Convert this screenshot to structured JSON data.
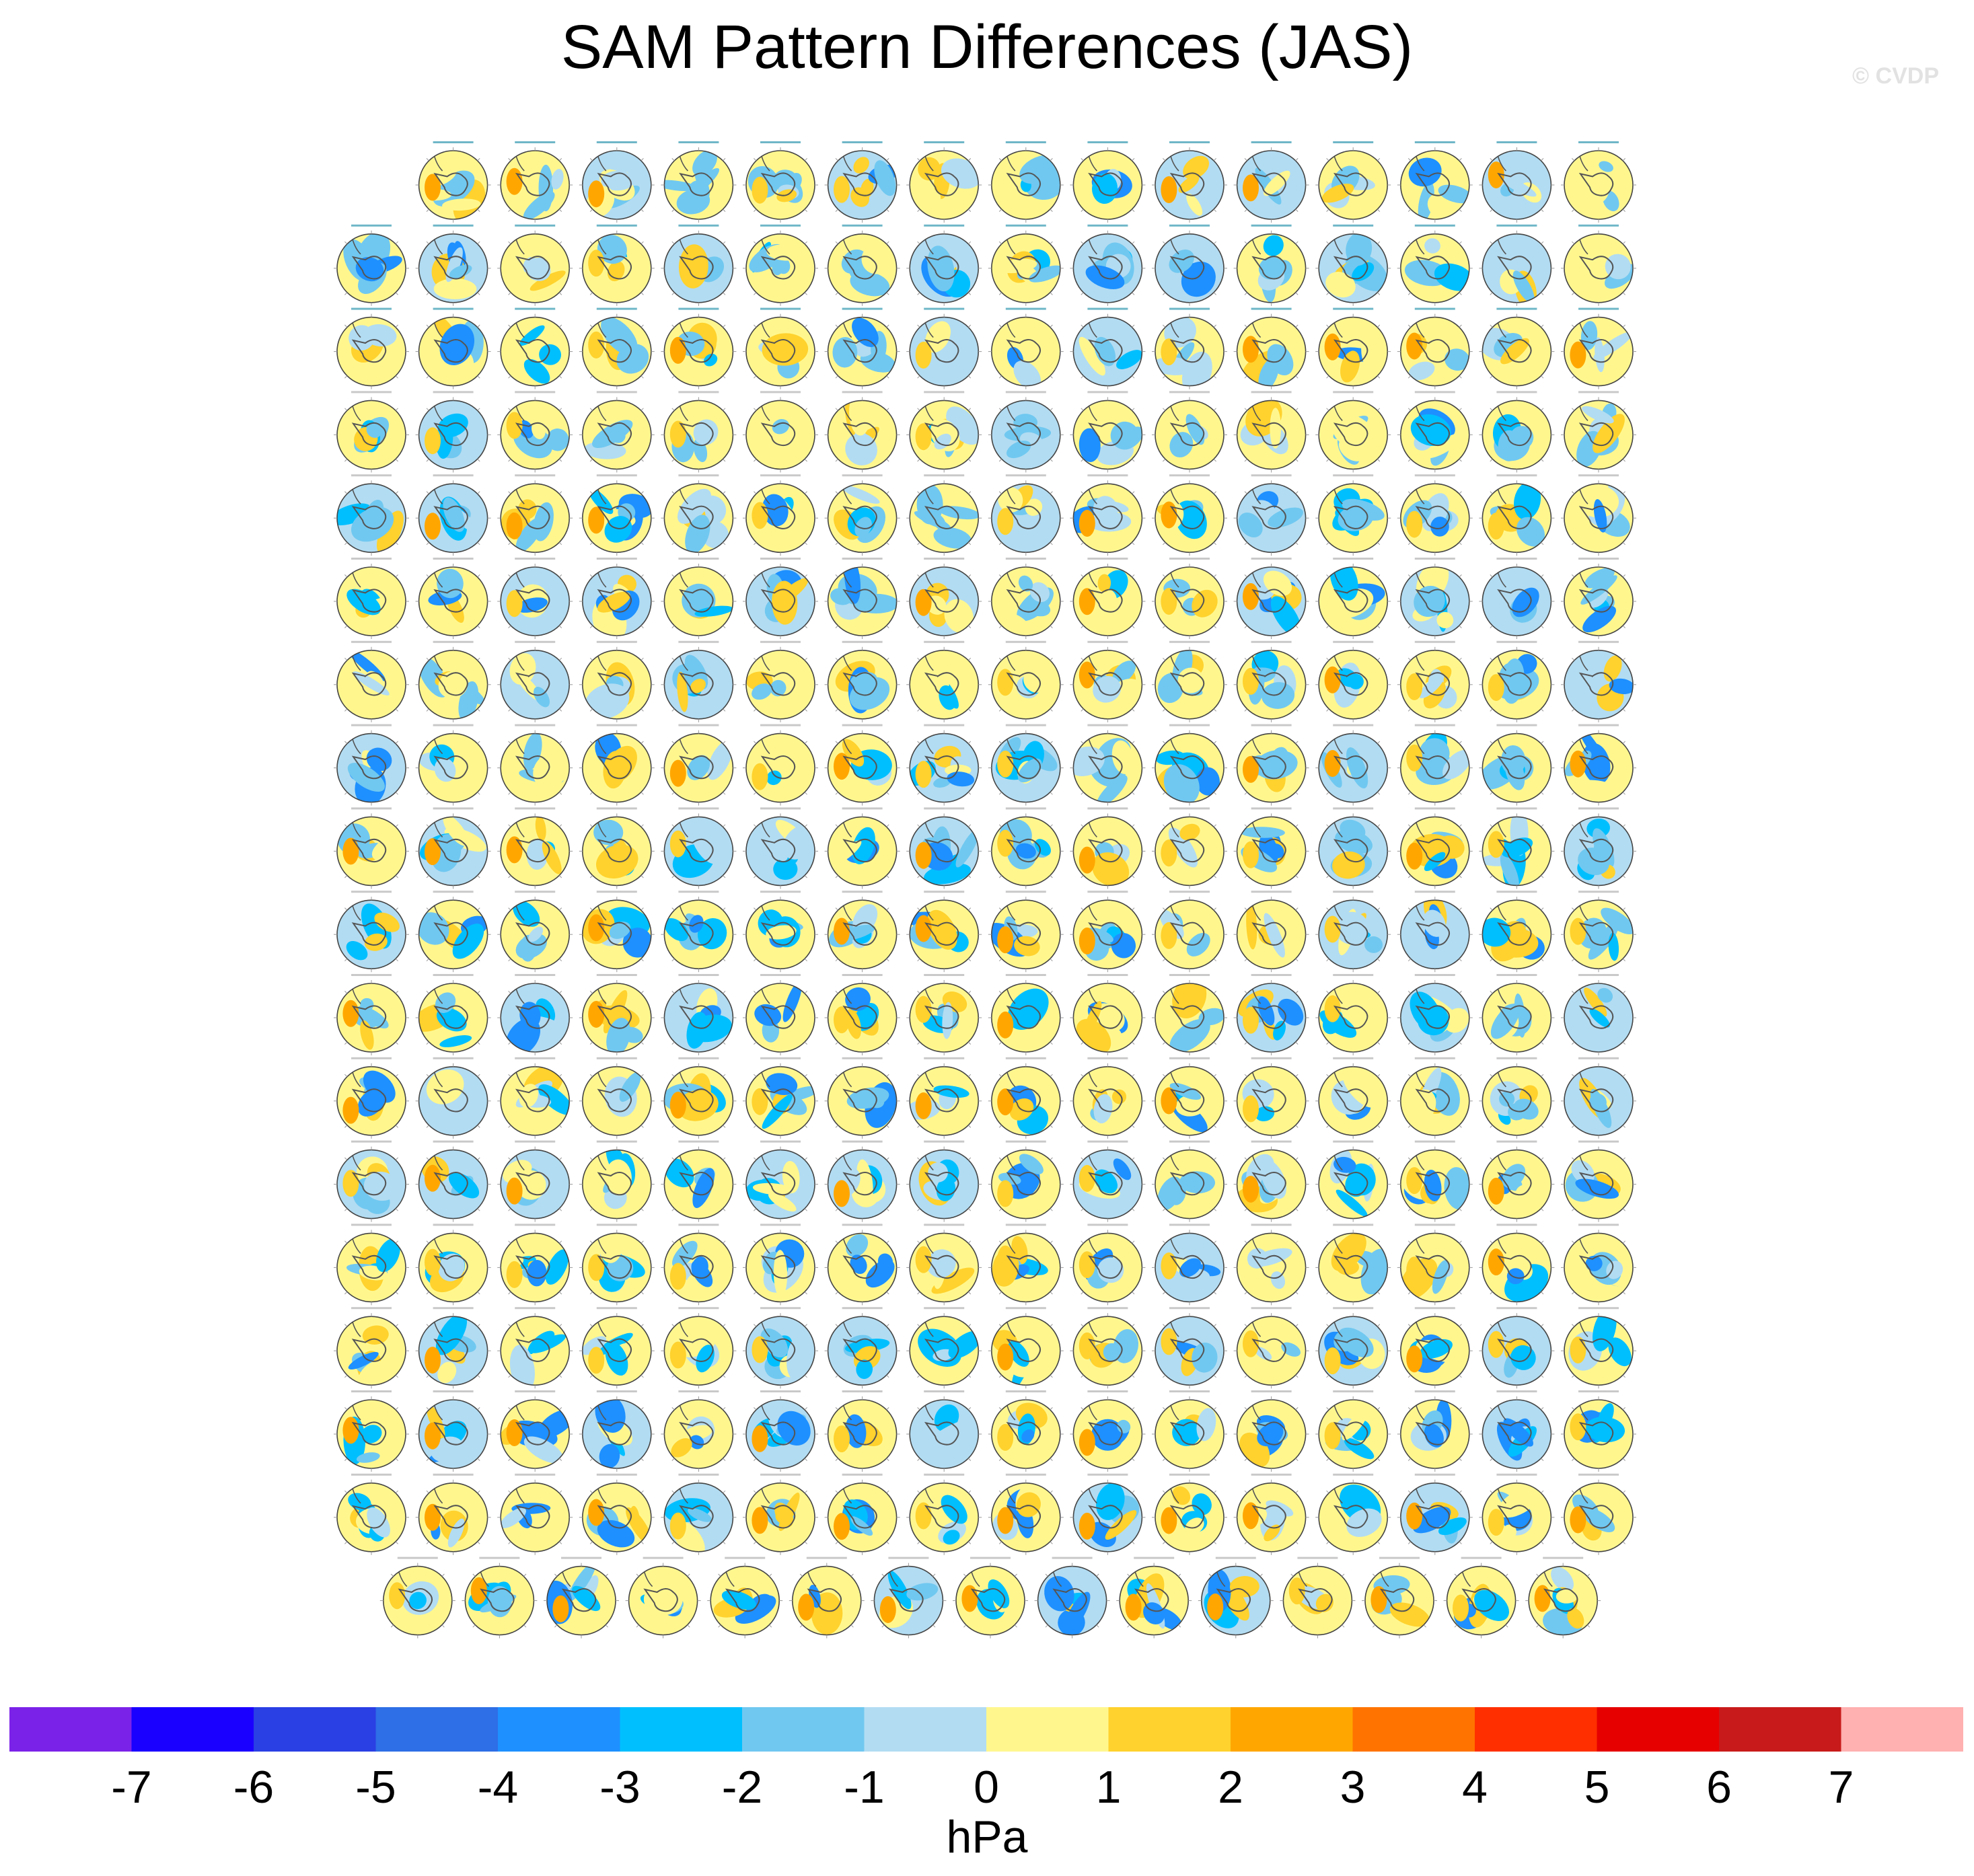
{
  "title": "SAM Pattern Differences (JAS)",
  "watermark": "© CVDP",
  "chart_data": {
    "type": "heatmap",
    "title": "SAM Pattern Differences (JAS)",
    "description_type": "grid of polar-stereographic Southern Hemisphere SLP difference maps",
    "grid": {
      "rows": 18,
      "columns": 16
    },
    "row_panel_counts": [
      15,
      16,
      16,
      16,
      16,
      16,
      16,
      16,
      16,
      16,
      16,
      16,
      16,
      16,
      16,
      16,
      16,
      15
    ],
    "colorbar": {
      "units": "hPa",
      "levels": [
        -7,
        -6,
        -5,
        -4,
        -3,
        -2,
        -1,
        0,
        1,
        2,
        3,
        4,
        5,
        6,
        7
      ],
      "colors": [
        "#7b22e8",
        "#1a00ff",
        "#2a3fe4",
        "#2e6ee6",
        "#1e90ff",
        "#00bfff",
        "#70c8f0",
        "#b2dcf2",
        "#fff78e",
        "#ffd22d",
        "#ffa700",
        "#ff7300",
        "#ff2f00",
        "#e60000",
        "#c81a1a",
        "#ffb0b0"
      ]
    }
  }
}
